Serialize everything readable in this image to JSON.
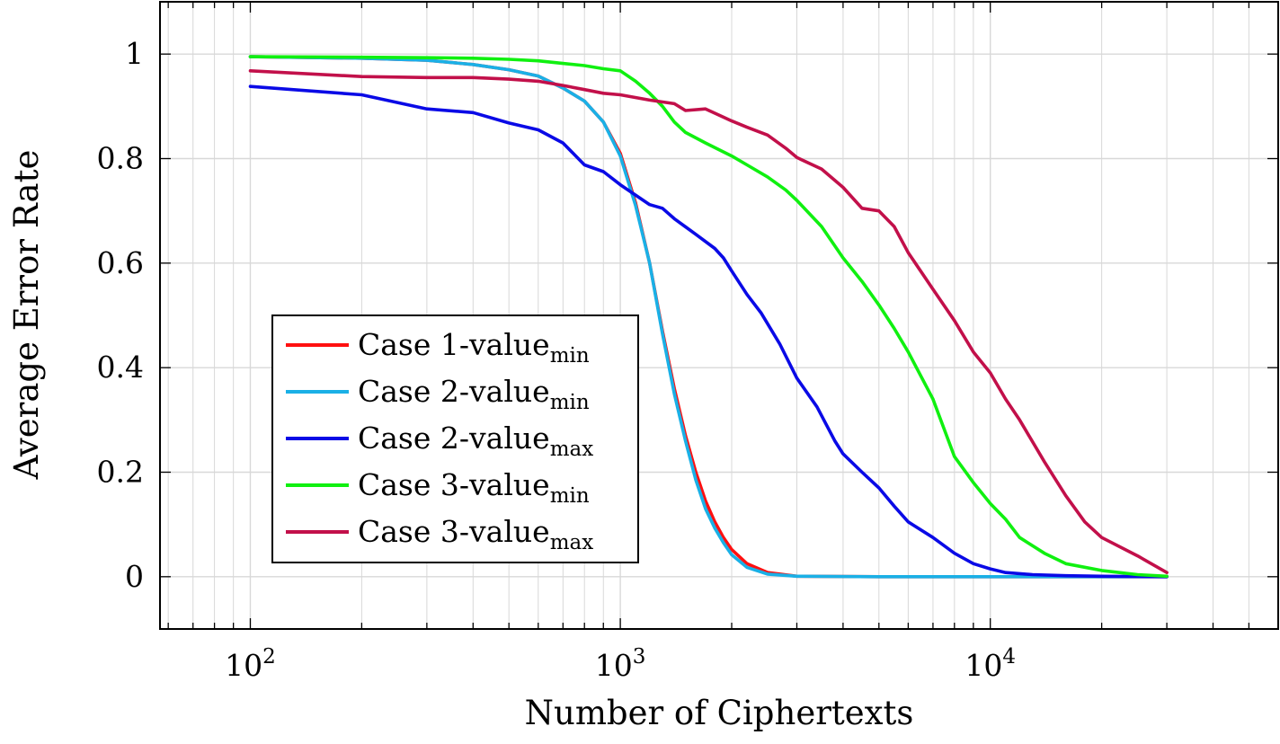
{
  "chart_data": {
    "type": "line",
    "xscale": "log",
    "xlabel": "Number of Ciphertexts",
    "ylabel": "Average Error Rate",
    "xlim": [
      57,
      60000
    ],
    "ylim": [
      -0.1,
      1.1
    ],
    "grid": true,
    "legend_position": "bottom-left",
    "x_ticks": [
      {
        "value": 100,
        "base": "10",
        "exp": "2"
      },
      {
        "value": 1000,
        "base": "10",
        "exp": "3"
      },
      {
        "value": 10000,
        "base": "10",
        "exp": "4"
      }
    ],
    "y_ticks": [
      {
        "value": 0,
        "label": "0"
      },
      {
        "value": 0.2,
        "label": "0.2"
      },
      {
        "value": 0.4,
        "label": "0.4"
      },
      {
        "value": 0.6,
        "label": "0.6"
      },
      {
        "value": 0.8,
        "label": "0.8"
      },
      {
        "value": 1,
        "label": "1"
      }
    ],
    "series": [
      {
        "name": "Case 1-value",
        "subscript": "min",
        "color": "#ff1010",
        "x": [
          100,
          200,
          300,
          400,
          500,
          600,
          700,
          800,
          900,
          1000,
          1100,
          1200,
          1300,
          1400,
          1500,
          1600,
          1700,
          1800,
          1900,
          2000,
          2200,
          2500,
          3000,
          5000,
          10000,
          20000,
          30000
        ],
        "y": [
          0.995,
          0.992,
          0.988,
          0.98,
          0.97,
          0.958,
          0.935,
          0.91,
          0.87,
          0.81,
          0.715,
          0.6,
          0.47,
          0.36,
          0.27,
          0.2,
          0.145,
          0.105,
          0.075,
          0.052,
          0.025,
          0.008,
          0.001,
          0,
          0,
          0,
          0
        ]
      },
      {
        "name": "Case 2-value",
        "subscript": "min",
        "color": "#1ab0e6",
        "x": [
          100,
          200,
          300,
          400,
          500,
          600,
          700,
          800,
          900,
          1000,
          1100,
          1200,
          1300,
          1400,
          1500,
          1600,
          1700,
          1800,
          1900,
          2000,
          2200,
          2500,
          3000,
          5000,
          10000,
          20000,
          30000
        ],
        "y": [
          0.995,
          0.992,
          0.988,
          0.98,
          0.97,
          0.958,
          0.935,
          0.91,
          0.87,
          0.805,
          0.71,
          0.6,
          0.465,
          0.35,
          0.26,
          0.185,
          0.13,
          0.093,
          0.065,
          0.042,
          0.018,
          0.005,
          0.001,
          0,
          0,
          0,
          0
        ]
      },
      {
        "name": "Case 2-value",
        "subscript": "max",
        "color": "#0a0ae6",
        "x": [
          100,
          200,
          300,
          400,
          500,
          600,
          700,
          800,
          900,
          1000,
          1200,
          1300,
          1400,
          1600,
          1800,
          1900,
          2000,
          2200,
          2400,
          2700,
          3000,
          3400,
          3800,
          4000,
          4500,
          5000,
          5500,
          6000,
          7000,
          8000,
          9000,
          10000,
          11000,
          13000,
          16000,
          20000,
          30000
        ],
        "y": [
          0.938,
          0.922,
          0.895,
          0.888,
          0.868,
          0.855,
          0.83,
          0.788,
          0.775,
          0.75,
          0.712,
          0.705,
          0.685,
          0.655,
          0.628,
          0.61,
          0.585,
          0.54,
          0.505,
          0.445,
          0.38,
          0.325,
          0.26,
          0.235,
          0.2,
          0.17,
          0.135,
          0.105,
          0.075,
          0.045,
          0.025,
          0.015,
          0.008,
          0.004,
          0.002,
          0.001,
          0
        ]
      },
      {
        "name": "Case 3-value",
        "subscript": "min",
        "color": "#10f010",
        "x": [
          100,
          200,
          300,
          400,
          500,
          600,
          700,
          800,
          900,
          1000,
          1100,
          1200,
          1300,
          1400,
          1500,
          1700,
          2000,
          2200,
          2500,
          2800,
          3000,
          3500,
          4000,
          4500,
          5000,
          5500,
          6000,
          7000,
          8000,
          9000,
          10000,
          11000,
          12000,
          14000,
          16000,
          20000,
          25000,
          30000
        ],
        "y": [
          0.995,
          0.994,
          0.993,
          0.992,
          0.99,
          0.987,
          0.982,
          0.978,
          0.972,
          0.968,
          0.948,
          0.925,
          0.9,
          0.87,
          0.85,
          0.83,
          0.805,
          0.788,
          0.765,
          0.74,
          0.72,
          0.67,
          0.61,
          0.565,
          0.52,
          0.475,
          0.43,
          0.34,
          0.23,
          0.18,
          0.14,
          0.11,
          0.075,
          0.045,
          0.025,
          0.012,
          0.004,
          0.001
        ]
      },
      {
        "name": "Case 3-value",
        "subscript": "max",
        "color": "#c2104a",
        "x": [
          100,
          200,
          300,
          400,
          500,
          600,
          700,
          800,
          900,
          1000,
          1200,
          1400,
          1500,
          1700,
          2000,
          2200,
          2500,
          2800,
          3000,
          3500,
          4000,
          4500,
          5000,
          5500,
          6000,
          7000,
          8000,
          9000,
          10000,
          11000,
          12000,
          14000,
          16000,
          18000,
          20000,
          25000,
          30000
        ],
        "y": [
          0.968,
          0.957,
          0.955,
          0.955,
          0.952,
          0.948,
          0.94,
          0.932,
          0.925,
          0.922,
          0.912,
          0.905,
          0.892,
          0.895,
          0.872,
          0.86,
          0.845,
          0.82,
          0.802,
          0.78,
          0.745,
          0.705,
          0.7,
          0.67,
          0.62,
          0.55,
          0.49,
          0.43,
          0.39,
          0.34,
          0.3,
          0.22,
          0.155,
          0.105,
          0.075,
          0.04,
          0.008
        ]
      }
    ]
  }
}
